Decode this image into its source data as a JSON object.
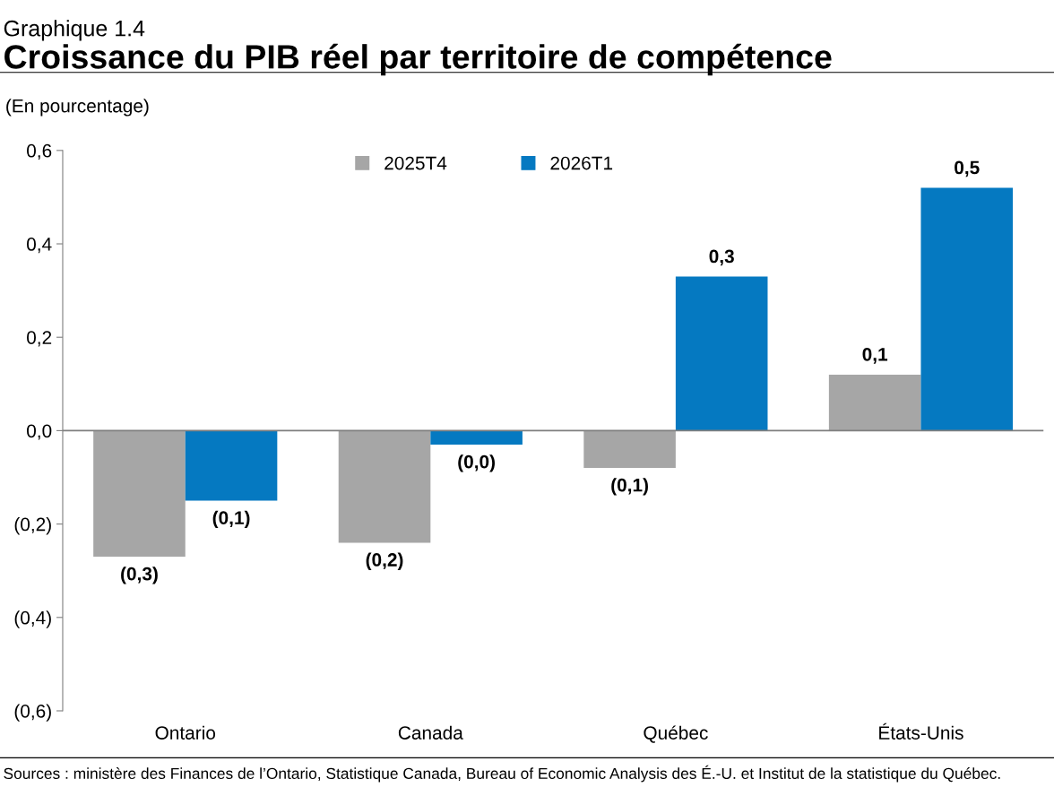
{
  "chart_data": {
    "type": "bar",
    "subtitle": "Graphique 1.4",
    "title": "Croissance du PIB réel par territoire de compétence",
    "ylabel": "(En pourcentage)",
    "categories": [
      "Ontario",
      "Canada",
      "Québec",
      "États-Unis"
    ],
    "series": [
      {
        "name": "2025T4",
        "color": "#a6a6a6",
        "values": [
          -0.27,
          -0.24,
          -0.08,
          0.12
        ],
        "value_labels": [
          "(0,3)",
          "(0,2)",
          "(0,1)",
          "0,1"
        ]
      },
      {
        "name": "2026T1",
        "color": "#0579c1",
        "values": [
          -0.15,
          -0.03,
          0.33,
          0.52
        ],
        "value_labels": [
          "(0,1)",
          "(0,0)",
          "0,3",
          "0,5"
        ]
      }
    ],
    "ylim": [
      -0.6,
      0.6
    ],
    "yticks": [
      {
        "value": -0.6,
        "label": "(0,6)"
      },
      {
        "value": -0.4,
        "label": "(0,4)"
      },
      {
        "value": -0.2,
        "label": "(0,2)"
      },
      {
        "value": 0,
        "label": "0,0"
      },
      {
        "value": 0.2,
        "label": "0,2"
      },
      {
        "value": 0.4,
        "label": "0,4"
      },
      {
        "value": 0.6,
        "label": "0,6"
      }
    ],
    "ref_lines": [
      {
        "axis": "y",
        "value": 0,
        "color": "#7f7f7f"
      }
    ],
    "grid": false,
    "legend": "top",
    "annotations": [
      "Sources : ministère des Finances de l’Ontario, Statistique Canada, Bureau of Economic Analysis des É.-U. et Institut de la statistique du Québec."
    ]
  }
}
